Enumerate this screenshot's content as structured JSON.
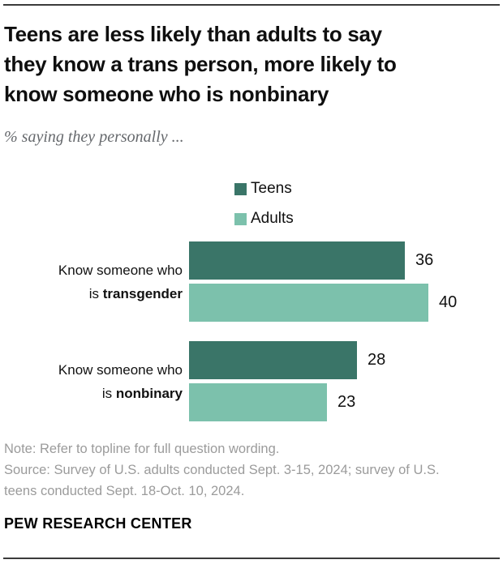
{
  "header": {
    "title": "Teens are less likely than adults to say they know a trans person, more likely to know someone who is nonbinary",
    "title_lines": [
      "Teens are less likely than adults to say",
      "they know a trans person, more likely to",
      "know someone who is nonbinary"
    ],
    "subtitle": "% saying they personally ..."
  },
  "legend": {
    "items": [
      {
        "label": "Teens",
        "color": "#3a7568"
      },
      {
        "label": "Adults",
        "color": "#7cc1ac"
      }
    ]
  },
  "chart_data": {
    "type": "bar",
    "orientation": "horizontal",
    "title": "Teens are less likely than adults to say they know a trans person, more likely to know someone who is nonbinary",
    "subtitle": "% saying they personally ...",
    "categories": [
      "Know someone who is transgender",
      "Know someone who is nonbinary"
    ],
    "category_lines": [
      {
        "line1": "Know someone who",
        "line2_plain": "is ",
        "line2_bold": "transgender"
      },
      {
        "line1": "Know someone who",
        "line2_plain": "is ",
        "line2_bold": "nonbinary"
      }
    ],
    "series": [
      {
        "name": "Teens",
        "color": "#3a7568",
        "values": [
          36,
          28
        ]
      },
      {
        "name": "Adults",
        "color": "#7cc1ac",
        "values": [
          40,
          23
        ]
      }
    ],
    "xlim": [
      0,
      40
    ],
    "value_labels": true,
    "grid": false,
    "legend_position": "top-center"
  },
  "footer": {
    "note": "Note: Refer to topline for full question wording.",
    "source": "Source: Survey of U.S. adults conducted Sept. 3-15, 2024; survey of U.S. teens conducted Sept. 18-Oct. 10, 2024.",
    "brand": "PEW RESEARCH CENTER"
  }
}
